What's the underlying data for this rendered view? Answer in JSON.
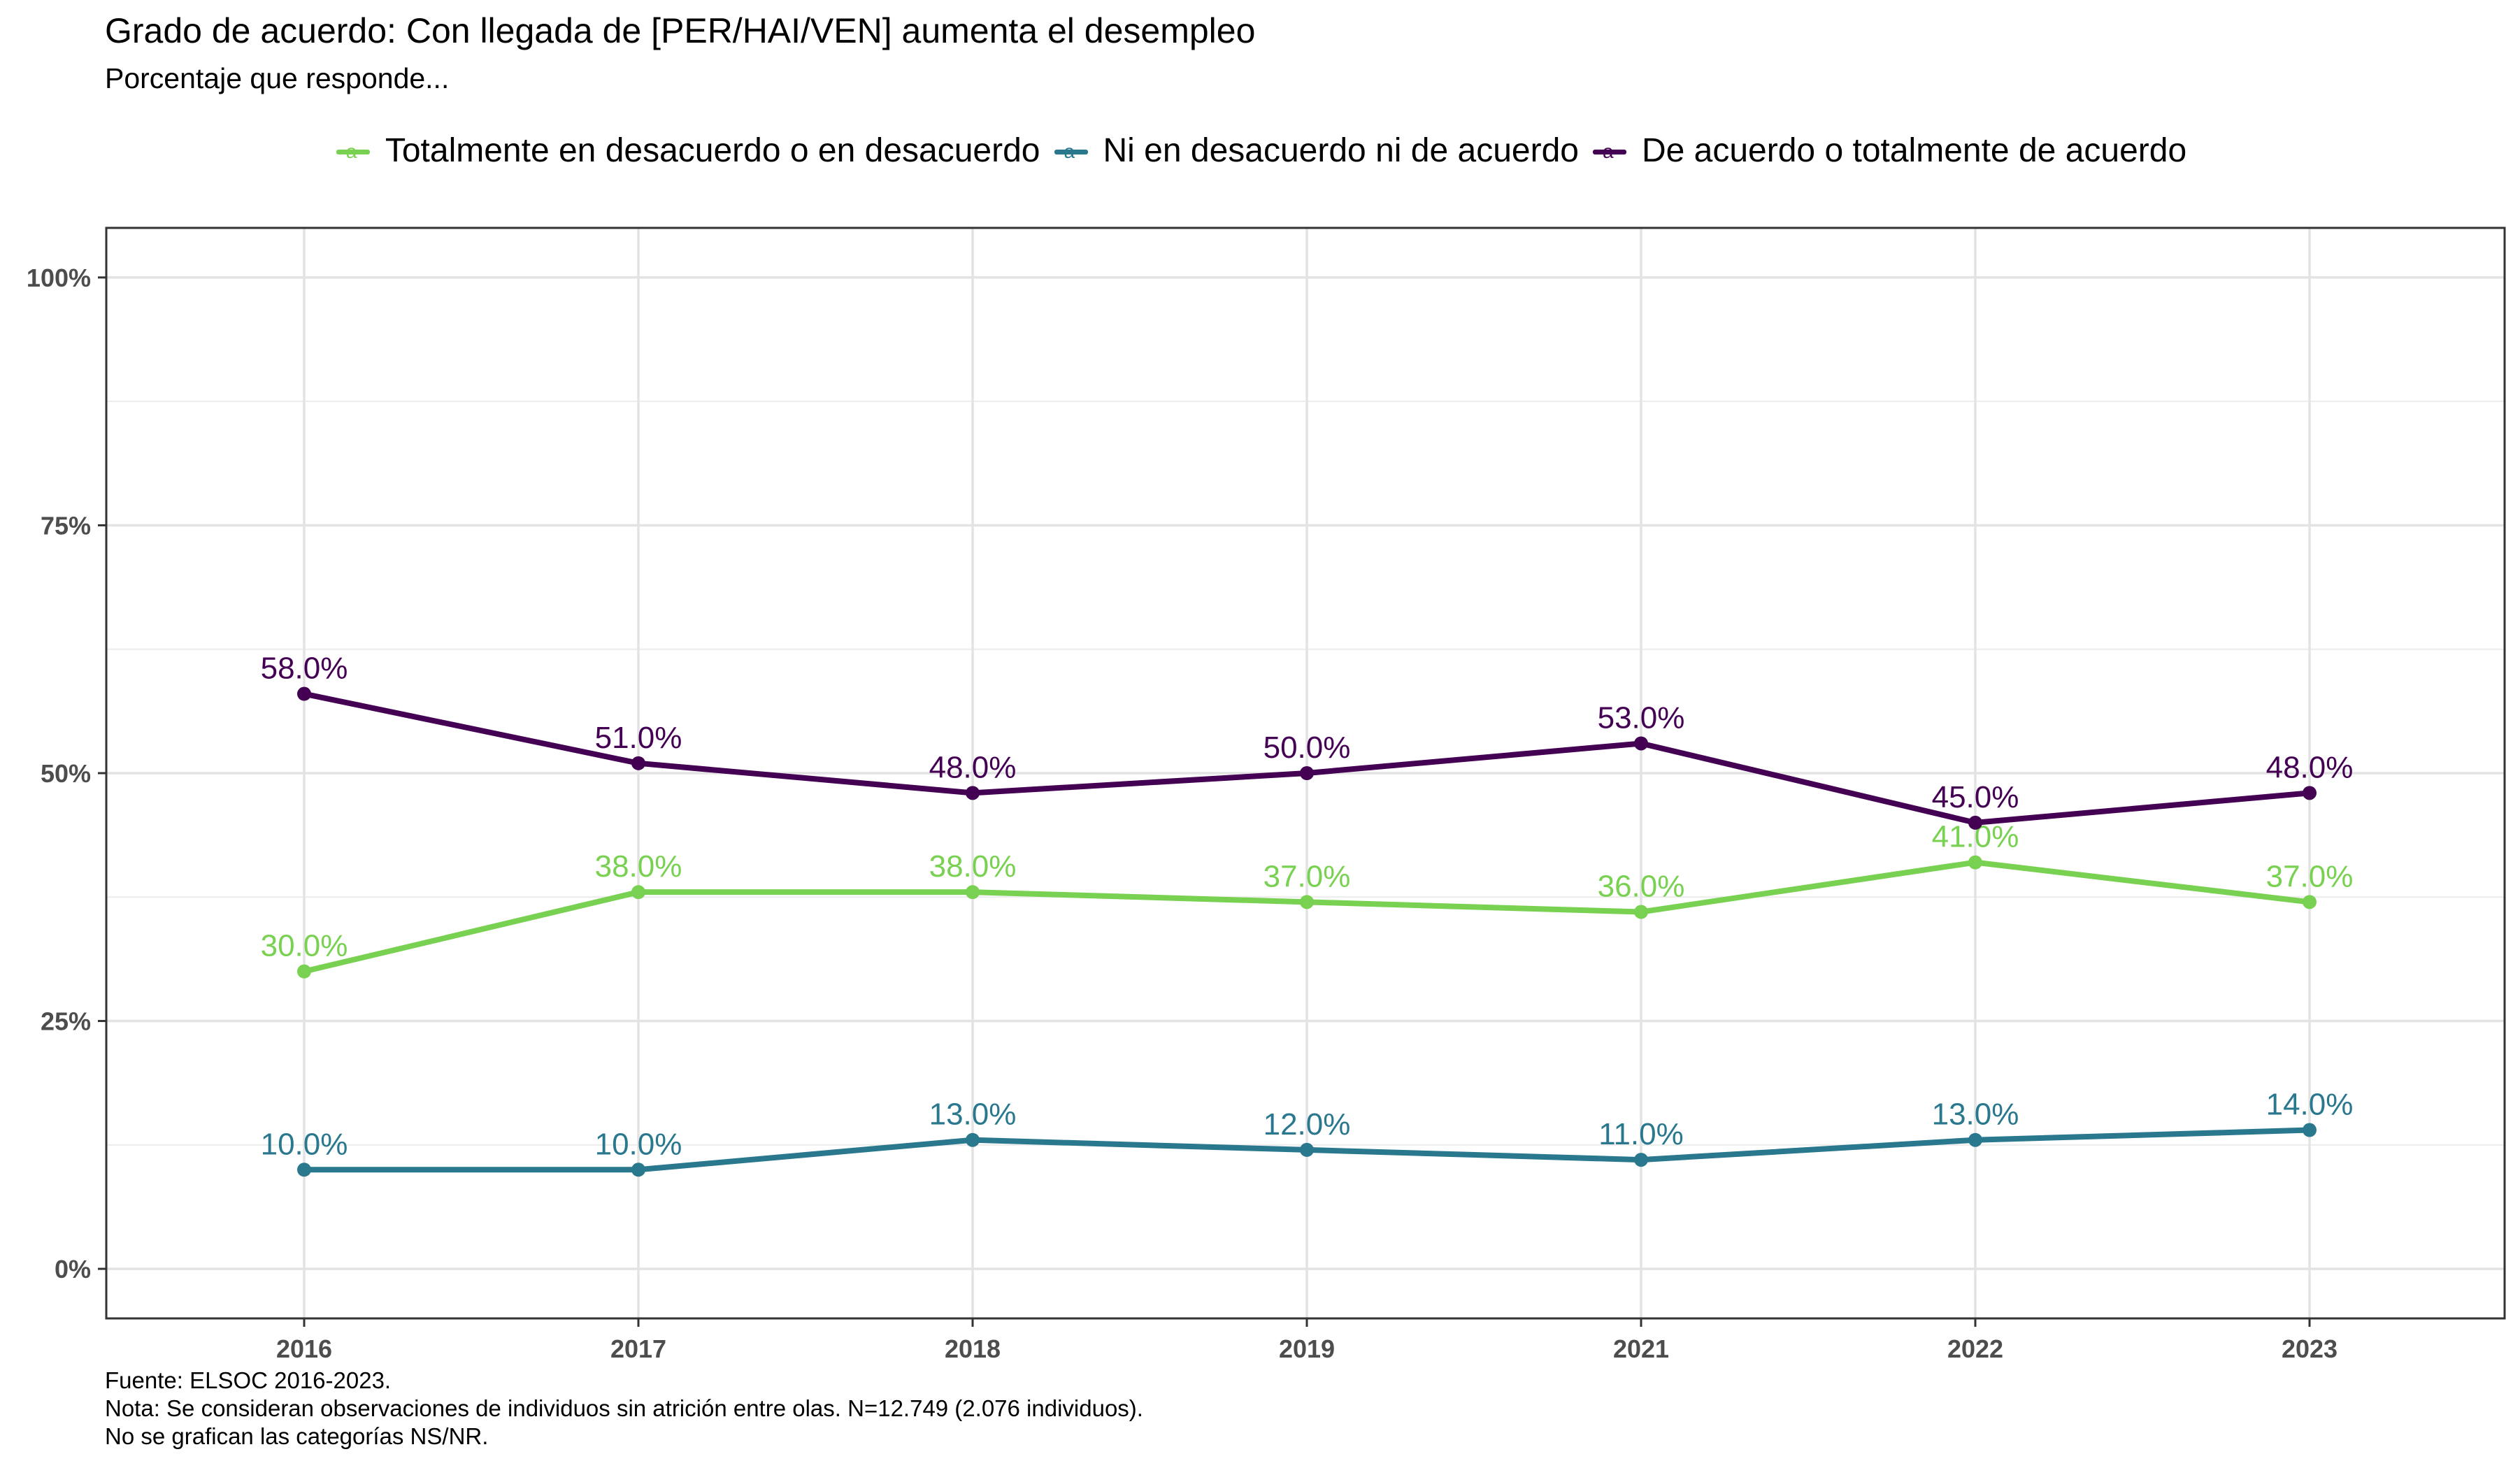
{
  "chart_data": {
    "type": "line",
    "title": "Grado de acuerdo: Con llegada de [PER/HAI/VEN] aumenta el desempleo",
    "subtitle": "Porcentaje que responde...",
    "categories": [
      "2016",
      "2017",
      "2018",
      "2019",
      "2021",
      "2022",
      "2023"
    ],
    "ylim": [
      -5,
      105
    ],
    "y_ticks": [
      0,
      25,
      50,
      75,
      100
    ],
    "y_tick_labels": [
      "0%",
      "25%",
      "50%",
      "75%",
      "100%"
    ],
    "grid": true,
    "legend_position": "top",
    "series": [
      {
        "name": "Totalmente en desacuerdo o en desacuerdo",
        "color": "#79d151",
        "values": [
          30,
          38,
          38,
          37,
          36,
          41,
          37
        ],
        "labels": [
          "30.0%",
          "38.0%",
          "38.0%",
          "37.0%",
          "36.0%",
          "41.0%",
          "37.0%"
        ]
      },
      {
        "name": "Ni en desacuerdo ni de acuerdo",
        "color": "#2a788e",
        "values": [
          10,
          10,
          13,
          12,
          11,
          13,
          14
        ],
        "labels": [
          "10.0%",
          "10.0%",
          "13.0%",
          "12.0%",
          "11.0%",
          "13.0%",
          "14.0%"
        ]
      },
      {
        "name": "De acuerdo o totalmente de acuerdo",
        "color": "#440154",
        "values": [
          58,
          51,
          48,
          50,
          53,
          45,
          48
        ],
        "labels": [
          "58.0%",
          "51.0%",
          "48.0%",
          "50.0%",
          "53.0%",
          "45.0%",
          "48.0%"
        ]
      }
    ]
  },
  "caption": {
    "line1": "Fuente: ELSOC 2016-2023.",
    "line2": "Nota: Se consideran observaciones de individuos sin atrición entre olas. N=12.749 (2.076 individuos).",
    "line3": "No se grafican las categorías NS/NR."
  },
  "legend_glyph": "a"
}
